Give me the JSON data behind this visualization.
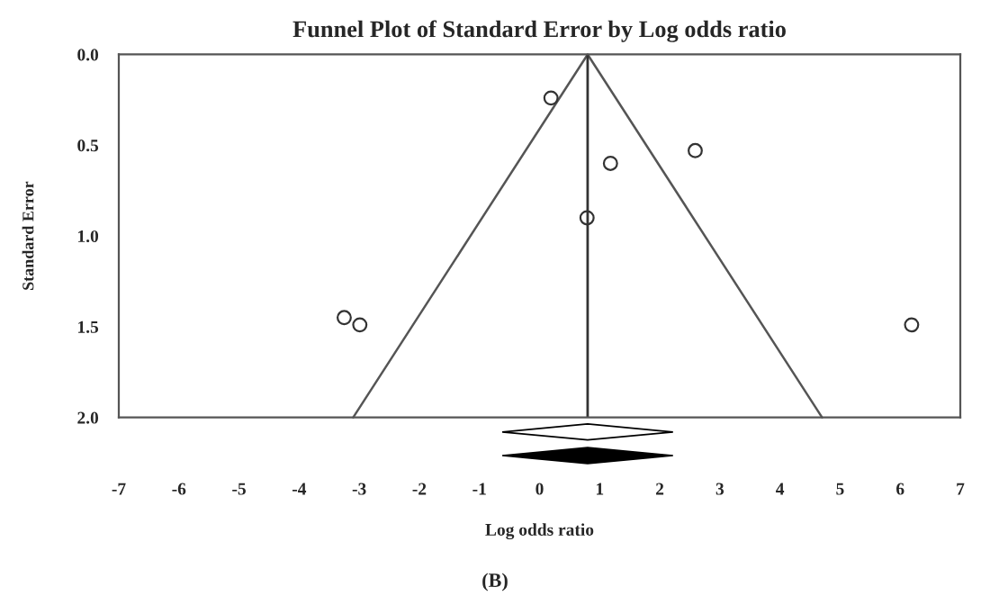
{
  "chart_data": {
    "type": "scatter",
    "title": "Funnel Plot of Standard Error by Log odds ratio",
    "xlabel": "Log odds ratio",
    "ylabel": "Standard Error",
    "annotations": [
      "(B)"
    ],
    "series": [
      {
        "marker": "circle",
        "color": "#333333",
        "x": [
          0.19,
          1.18,
          2.59,
          0.79,
          -3.25,
          -2.99,
          6.19
        ],
        "values": [
          0.24,
          0.6,
          0.53,
          0.9,
          1.45,
          1.49,
          1.49
        ]
      },
      {
        "type": "line",
        "marker": "none",
        "color": "#555555",
        "x": [
          -3.1,
          0.8,
          4.7
        ],
        "values": [
          2.0,
          0.0,
          2.0
        ]
      }
    ],
    "ref_lines": [
      {
        "axis": "x",
        "value": 0.8,
        "color": "#333333"
      }
    ],
    "xlim": [
      -7,
      7
    ],
    "xticks": [
      -7,
      -6,
      -5,
      -4,
      -3,
      -2,
      -1,
      0,
      1,
      2,
      3,
      4,
      5,
      6,
      7
    ],
    "ylim": [
      2.0,
      0.0
    ],
    "yticks": [
      {
        "value": 0,
        "label": "0.0"
      },
      {
        "value": 0.5,
        "label": "0.5"
      },
      {
        "value": 1,
        "label": "1.0"
      },
      {
        "value": 1.5,
        "label": "1.5"
      },
      {
        "value": 2,
        "label": "2.0"
      }
    ],
    "grid": false,
    "legend": false
  }
}
